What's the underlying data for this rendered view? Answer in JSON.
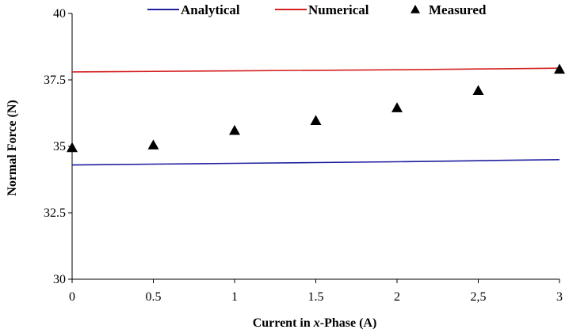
{
  "chart_data": {
    "type": "line",
    "xlabel_prefix": "Current in ",
    "xlabel_italic": "x",
    "xlabel_suffix": "-Phase (A)",
    "ylabel": "Normal Force (N)",
    "x": [
      0,
      0.5,
      1,
      1.5,
      2,
      2.5,
      3
    ],
    "x_tick_labels": [
      "0",
      "0.5",
      "1",
      "1.5",
      "2",
      "2,5",
      "3"
    ],
    "y_ticks": [
      30,
      32.5,
      35,
      37.5,
      40
    ],
    "y_tick_labels": [
      "30",
      "32.5",
      "35",
      "37.5",
      "40"
    ],
    "xlim": [
      0,
      3
    ],
    "ylim": [
      30,
      40
    ],
    "grid": false,
    "legend_position": "top",
    "series": [
      {
        "name": "Analytical",
        "style": "line",
        "color": "#1f1fa0",
        "values": [
          34.3,
          34.33,
          34.36,
          34.39,
          34.42,
          34.46,
          34.5
        ]
      },
      {
        "name": "Numerical",
        "style": "line",
        "color": "#d42020",
        "values": [
          37.8,
          37.82,
          37.84,
          37.86,
          37.88,
          37.91,
          37.94
        ]
      },
      {
        "name": "Measured",
        "style": "markers",
        "marker": "triangle",
        "color": "#000000",
        "values": [
          34.95,
          35.05,
          35.6,
          35.97,
          36.45,
          37.1,
          37.9
        ]
      }
    ]
  }
}
